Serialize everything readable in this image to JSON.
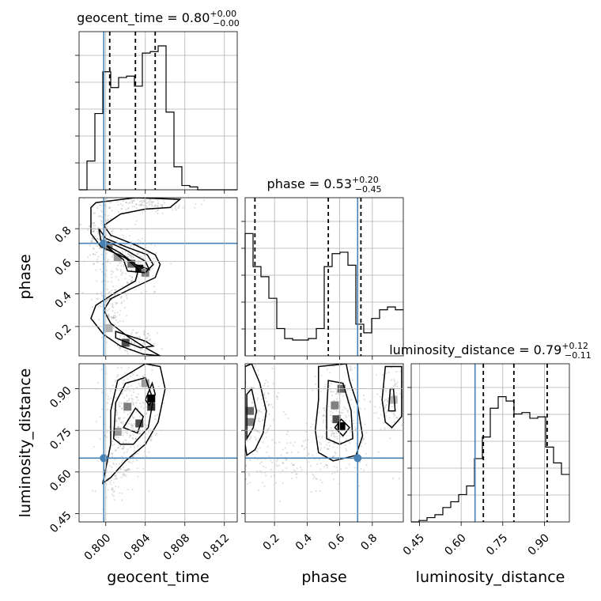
{
  "chart_data": {
    "type": "corner",
    "parameters": [
      "geocent_time",
      "phase",
      "luminosity_distance"
    ],
    "titles": [
      {
        "param": "geocent_time",
        "prefix": "geocent_time = ",
        "median": "0.80",
        "plus": "+0.00",
        "minus": "−0.00"
      },
      {
        "param": "phase",
        "prefix": "phase = ",
        "median": "0.53",
        "plus": "+0.20",
        "minus": "−0.45"
      },
      {
        "param": "luminosity_distance",
        "prefix": "luminosity_distance = ",
        "median": "0.79",
        "plus": "+0.12",
        "minus": "−0.11"
      }
    ],
    "ranges": {
      "geocent_time": [
        0.7973,
        0.8133
      ],
      "phase": [
        0.02,
        0.99
      ],
      "luminosity_distance": [
        0.42,
        0.99
      ]
    },
    "ticks": {
      "geocent_time": {
        "values": [
          0.8,
          0.804,
          0.808,
          0.812
        ],
        "labels": [
          "0.800",
          "0.804",
          "0.808",
          "0.812"
        ]
      },
      "phase": {
        "values": [
          0.2,
          0.4,
          0.6,
          0.8
        ],
        "labels": [
          "0.2",
          "0.4",
          "0.6",
          "0.8"
        ]
      },
      "luminosity_distance": {
        "values": [
          0.45,
          0.6,
          0.75,
          0.9
        ],
        "labels": [
          "0.45",
          "0.60",
          "0.75",
          "0.90"
        ]
      }
    },
    "truths": {
      "geocent_time": 0.7998,
      "phase": 0.71,
      "luminosity_distance": 0.65
    },
    "quantiles": {
      "geocent_time": [
        0.8004,
        0.803,
        0.805
      ],
      "phase": [
        0.08,
        0.53,
        0.73
      ],
      "luminosity_distance": [
        0.68,
        0.79,
        0.91
      ]
    },
    "histograms": {
      "geocent_time": {
        "bins": 20,
        "counts": [
          0.0,
          0.2,
          0.53,
          0.82,
          0.71,
          0.78,
          0.79,
          0.72,
          0.95,
          0.96,
          1.0,
          0.54,
          0.16,
          0.03,
          0.02,
          0.0,
          0.0,
          0.0,
          0.0,
          0.0
        ]
      },
      "phase": {
        "bins": 20,
        "counts": [
          0.85,
          0.62,
          0.55,
          0.4,
          0.19,
          0.12,
          0.11,
          0.11,
          0.12,
          0.19,
          0.62,
          0.71,
          0.72,
          0.63,
          0.22,
          0.16,
          0.26,
          0.32,
          0.34,
          0.32
        ]
      },
      "luminosity_distance": {
        "bins": 20,
        "counts": [
          0.0,
          0.01,
          0.03,
          0.05,
          0.1,
          0.14,
          0.19,
          0.25,
          0.44,
          0.59,
          0.79,
          0.87,
          0.84,
          0.75,
          0.76,
          0.72,
          0.73,
          0.52,
          0.41,
          0.33
        ]
      }
    },
    "pairs": [
      {
        "x": "geocent_time",
        "y": "phase",
        "contours": [
          [
            [
              0.799,
              0.96
            ],
            [
              0.803,
              0.99
            ],
            [
              0.8075,
              0.98
            ],
            [
              0.8065,
              0.93
            ],
            [
              0.804,
              0.92
            ],
            [
              0.8015,
              0.89
            ],
            [
              0.7998,
              0.82
            ],
            [
              0.8005,
              0.76
            ],
            [
              0.803,
              0.7
            ],
            [
              0.805,
              0.64
            ],
            [
              0.8055,
              0.58
            ],
            [
              0.805,
              0.5
            ],
            [
              0.8025,
              0.43
            ],
            [
              0.8005,
              0.37
            ],
            [
              0.7998,
              0.3
            ],
            [
              0.8005,
              0.22
            ],
            [
              0.8022,
              0.14
            ],
            [
              0.804,
              0.07
            ],
            [
              0.8055,
              0.02
            ],
            [
              0.8038,
              0.03
            ],
            [
              0.8015,
              0.08
            ],
            [
              0.7998,
              0.15
            ],
            [
              0.7985,
              0.25
            ],
            [
              0.799,
              0.33
            ],
            [
              0.801,
              0.41
            ],
            [
              0.803,
              0.48
            ],
            [
              0.8033,
              0.55
            ],
            [
              0.802,
              0.62
            ],
            [
              0.7995,
              0.69
            ],
            [
              0.7985,
              0.77
            ],
            [
              0.7985,
              0.86
            ],
            [
              0.7985,
              0.93
            ]
          ],
          [
            [
              0.7993,
              0.8
            ],
            [
              0.8,
              0.74
            ],
            [
              0.802,
              0.69
            ],
            [
              0.8042,
              0.64
            ],
            [
              0.8048,
              0.58
            ],
            [
              0.804,
              0.53
            ],
            [
              0.8022,
              0.54
            ],
            [
              0.8018,
              0.61
            ],
            [
              0.8005,
              0.67
            ],
            [
              0.7995,
              0.73
            ]
          ],
          [
            [
              0.8002,
              0.72
            ],
            [
              0.802,
              0.67
            ],
            [
              0.804,
              0.6
            ],
            [
              0.8044,
              0.55
            ],
            [
              0.803,
              0.58
            ],
            [
              0.8015,
              0.65
            ],
            [
              0.8,
              0.7
            ]
          ],
          [
            [
              0.801,
              0.17
            ],
            [
              0.804,
              0.11
            ],
            [
              0.8048,
              0.08
            ],
            [
              0.8035,
              0.07
            ],
            [
              0.801,
              0.13
            ]
          ]
        ],
        "samples": [
          {
            "x": 0.7995,
            "y": 0.78,
            "sx": 0.0009,
            "sy": 0.12,
            "n": 160
          },
          {
            "x": 0.8028,
            "y": 0.6,
            "sx": 0.0012,
            "sy": 0.08,
            "n": 180
          },
          {
            "x": 0.8005,
            "y": 0.32,
            "sx": 0.0008,
            "sy": 0.1,
            "n": 120
          },
          {
            "x": 0.803,
            "y": 0.1,
            "sx": 0.0012,
            "sy": 0.05,
            "n": 90
          },
          {
            "x": 0.8045,
            "y": 0.95,
            "sx": 0.002,
            "sy": 0.025,
            "n": 110
          }
        ],
        "density": [
          {
            "x": 0.8034,
            "y": 0.555,
            "v": 0.9
          },
          {
            "x": 0.8026,
            "y": 0.585,
            "v": 0.6
          },
          {
            "x": 0.8012,
            "y": 0.625,
            "v": 0.4
          },
          {
            "x": 0.8003,
            "y": 0.69,
            "v": 0.5
          },
          {
            "x": 0.804,
            "y": 0.53,
            "v": 0.5
          },
          {
            "x": 0.802,
            "y": 0.1,
            "v": 0.7
          },
          {
            "x": 0.8003,
            "y": 0.19,
            "v": 0.3
          }
        ]
      },
      {
        "x": "geocent_time",
        "y": "luminosity_distance",
        "contours": [
          [
            [
              0.7997,
              0.56
            ],
            [
              0.8005,
              0.7
            ],
            [
              0.8005,
              0.82
            ],
            [
              0.8012,
              0.93
            ],
            [
              0.804,
              0.99
            ],
            [
              0.8055,
              0.98
            ],
            [
              0.806,
              0.9
            ],
            [
              0.8053,
              0.78
            ],
            [
              0.804,
              0.7
            ],
            [
              0.802,
              0.64
            ],
            [
              0.8005,
              0.58
            ]
          ],
          [
            [
              0.8008,
              0.72
            ],
            [
              0.801,
              0.85
            ],
            [
              0.802,
              0.92
            ],
            [
              0.804,
              0.94
            ],
            [
              0.8048,
              0.86
            ],
            [
              0.8043,
              0.76
            ],
            [
              0.8028,
              0.7
            ],
            [
              0.8015,
              0.7
            ]
          ],
          [
            [
              0.8018,
              0.76
            ],
            [
              0.803,
              0.83
            ],
            [
              0.8038,
              0.8
            ],
            [
              0.8032,
              0.74
            ]
          ],
          [
            [
              0.804,
              0.86
            ],
            [
              0.8047,
              0.92
            ],
            [
              0.805,
              0.88
            ],
            [
              0.8044,
              0.84
            ]
          ]
        ],
        "samples": [
          {
            "x": 0.8022,
            "y": 0.8,
            "sx": 0.0014,
            "sy": 0.1,
            "n": 320
          },
          {
            "x": 0.801,
            "y": 0.6,
            "sx": 0.0008,
            "sy": 0.06,
            "n": 80
          }
        ],
        "density": [
          {
            "x": 0.8046,
            "y": 0.865,
            "v": 1.0
          },
          {
            "x": 0.8046,
            "y": 0.835,
            "v": 0.8
          },
          {
            "x": 0.8034,
            "y": 0.775,
            "v": 0.7
          },
          {
            "x": 0.8022,
            "y": 0.835,
            "v": 0.5
          },
          {
            "x": 0.8012,
            "y": 0.745,
            "v": 0.4
          },
          {
            "x": 0.804,
            "y": 0.92,
            "v": 0.4
          }
        ]
      },
      {
        "x": "phase",
        "y": "luminosity_distance",
        "contours": [
          [
            [
              0.03,
              0.66
            ],
            [
              0.08,
              0.68
            ],
            [
              0.13,
              0.74
            ],
            [
              0.15,
              0.82
            ],
            [
              0.11,
              0.92
            ],
            [
              0.06,
              0.99
            ],
            [
              0.02,
              0.98
            ],
            [
              0.02,
              0.7
            ]
          ],
          [
            [
              0.03,
              0.72
            ],
            [
              0.07,
              0.76
            ],
            [
              0.09,
              0.82
            ],
            [
              0.06,
              0.9
            ],
            [
              0.03,
              0.88
            ]
          ],
          [
            [
              0.47,
              0.98
            ],
            [
              0.47,
              0.86
            ],
            [
              0.45,
              0.75
            ],
            [
              0.47,
              0.67
            ],
            [
              0.56,
              0.64
            ],
            [
              0.7,
              0.66
            ],
            [
              0.74,
              0.73
            ],
            [
              0.71,
              0.84
            ],
            [
              0.66,
              0.93
            ],
            [
              0.64,
              0.99
            ]
          ],
          [
            [
              0.53,
              0.93
            ],
            [
              0.52,
              0.82
            ],
            [
              0.52,
              0.72
            ],
            [
              0.6,
              0.7
            ],
            [
              0.68,
              0.72
            ],
            [
              0.67,
              0.82
            ],
            [
              0.62,
              0.92
            ]
          ],
          [
            [
              0.57,
              0.76
            ],
            [
              0.62,
              0.73
            ],
            [
              0.66,
              0.76
            ],
            [
              0.61,
              0.79
            ]
          ],
          [
            [
              0.88,
              0.98
            ],
            [
              0.86,
              0.86
            ],
            [
              0.88,
              0.78
            ],
            [
              0.92,
              0.76
            ],
            [
              0.98,
              0.8
            ],
            [
              0.98,
              0.98
            ]
          ],
          [
            [
              0.91,
              0.9
            ],
            [
              0.9,
              0.82
            ],
            [
              0.94,
              0.82
            ],
            [
              0.93,
              0.9
            ]
          ]
        ],
        "samples": [
          {
            "x": 0.08,
            "y": 0.82,
            "sx": 0.07,
            "sy": 0.09,
            "n": 160
          },
          {
            "x": 0.6,
            "y": 0.8,
            "sx": 0.08,
            "sy": 0.09,
            "n": 220
          },
          {
            "x": 0.92,
            "y": 0.86,
            "sx": 0.05,
            "sy": 0.07,
            "n": 90
          },
          {
            "x": 0.35,
            "y": 0.64,
            "sx": 0.22,
            "sy": 0.05,
            "n": 160
          }
        ],
        "density": [
          {
            "x": 0.61,
            "y": 0.765,
            "v": 1.0
          },
          {
            "x": 0.58,
            "y": 0.79,
            "v": 0.7
          },
          {
            "x": 0.61,
            "y": 0.9,
            "v": 0.6
          },
          {
            "x": 0.57,
            "y": 0.84,
            "v": 0.5
          },
          {
            "x": 0.05,
            "y": 0.82,
            "v": 0.6
          },
          {
            "x": 0.05,
            "y": 0.78,
            "v": 0.5
          },
          {
            "x": 0.93,
            "y": 0.86,
            "v": 0.3
          }
        ]
      }
    ]
  }
}
